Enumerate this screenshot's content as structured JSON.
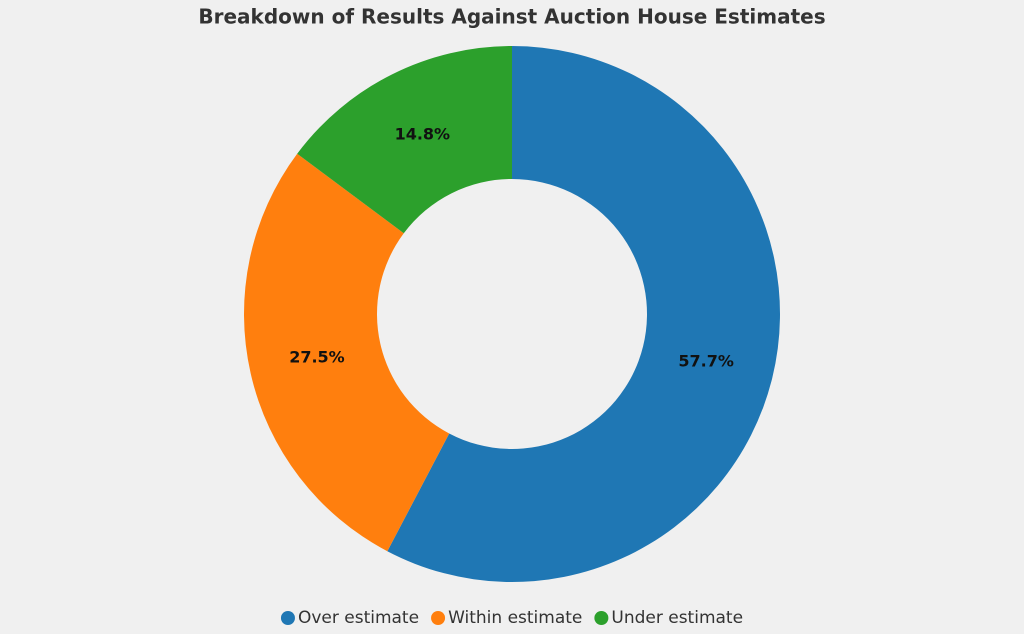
{
  "chart_data": {
    "type": "donut",
    "title": "Breakdown of Results Against Auction House Estimates",
    "categories": [
      "Over estimate",
      "Within estimate",
      "Under estimate"
    ],
    "values": [
      57.7,
      27.5,
      14.8
    ],
    "value_labels": [
      "57.7%",
      "27.5%",
      "14.8%"
    ],
    "colors": [
      "#1f77b4",
      "#ff7f0e",
      "#2ca02c"
    ],
    "legend": "bottom"
  }
}
